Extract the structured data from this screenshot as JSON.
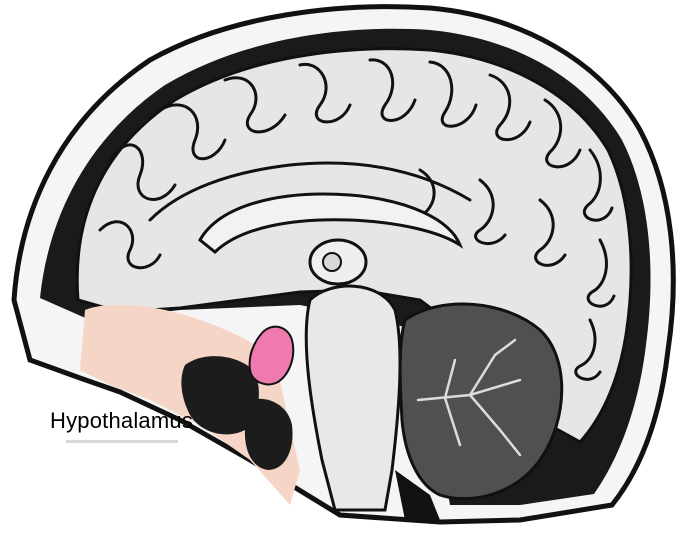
{
  "labels": {
    "hypothalamus": "Hypothalamus"
  },
  "colors": {
    "background": "#ffffff",
    "brain_fill": "#e6e6e6",
    "outline": "#111111",
    "hypothalamus_highlight": "#f07ab0",
    "nasal_tissue": "#f5d5c6",
    "cerebellum": "#505050"
  }
}
